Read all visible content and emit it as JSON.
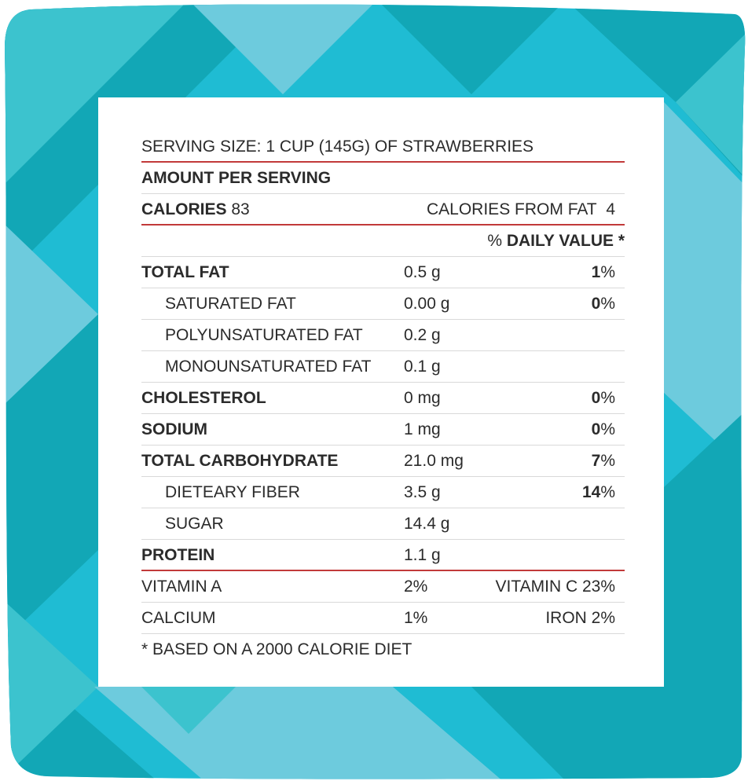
{
  "colors": {
    "divider_red": "#c23a3a",
    "divider_gray": "#d9d9d9",
    "frame_teal": [
      "#1fbcd3",
      "#12a7b6",
      "#3cc3ce",
      "#6dcbdd"
    ]
  },
  "serving_size": "SERVING SIZE: 1 CUP (145G) OF STRAWBERRIES",
  "amount_per_serving": "AMOUNT PER SERVING",
  "calories": {
    "label": "CALORIES",
    "value": "83",
    "from_fat_label": "CALORIES FROM FAT",
    "from_fat_value": "4"
  },
  "daily_value_header": {
    "prefix": "% ",
    "label": "DAILY VALUE *"
  },
  "nutrients": [
    {
      "name": "TOTAL FAT",
      "amount": "0.5 g",
      "dv": "1",
      "pct": "%"
    },
    {
      "name": "SATURATED FAT",
      "amount": "0.00 g",
      "dv": "0",
      "pct": "%"
    },
    {
      "name": "POLYUNSATURATED FAT",
      "amount": "0.2 g"
    },
    {
      "name": "MONOUNSATURATED FAT",
      "amount": "0.1 g"
    },
    {
      "name": "CHOLESTEROL",
      "amount": "0 mg",
      "dv": "0",
      "pct": "%"
    },
    {
      "name": "SODIUM",
      "amount": "1 mg",
      "dv": "0",
      "pct": "%"
    },
    {
      "name": "TOTAL CARBOHYDRATE",
      "amount": "21.0 mg",
      "dv": "7",
      "pct": "%"
    },
    {
      "name": "DIETEARY FIBER",
      "amount": "3.5 g",
      "dv": "14",
      "pct": "%"
    },
    {
      "name": "SUGAR",
      "amount": "14.4 g"
    },
    {
      "name": "PROTEIN",
      "amount": "1.1 g"
    }
  ],
  "vitamins": [
    {
      "left_name": "VITAMIN A",
      "left_value": "2%",
      "right": "VITAMIN C 23%"
    },
    {
      "left_name": "CALCIUM",
      "left_value": "1%",
      "right": "IRON 2%"
    }
  ],
  "footnote": "* BASED ON A 2000 CALORIE DIET"
}
